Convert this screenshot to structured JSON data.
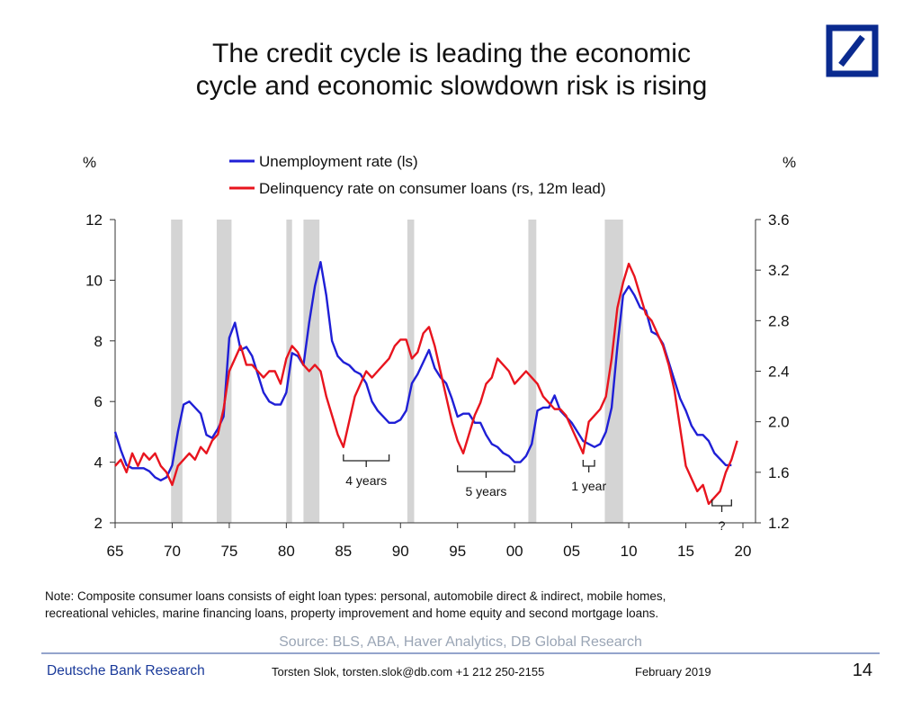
{
  "slide": {
    "source": "Source: BLS, ABA, Haver Analytics, DB Global Research",
    "note": [
      "Note: Composite consumer loans consists of eight loan types: personal, automobile direct & indirect, mobile homes,",
      "recreational vehicles, marine financing loans, property improvement and home equity and second mortgage loans."
    ],
    "brand": "Deutsche Bank Research",
    "author": "Torsten Slok, torsten.slok@db.com  +1 212 250-2155",
    "date": "February 2019",
    "page": "14"
  },
  "chart_data": {
    "type": "line",
    "title": [
      "The credit cycle is leading the economic",
      "cycle and economic slowdown risk is rising"
    ],
    "y_label": "%",
    "y2_label": "%",
    "xlim": [
      1965,
      2020
    ],
    "xticks": [
      {
        "value": 1965,
        "label": "65"
      },
      {
        "value": 1970,
        "label": "70"
      },
      {
        "value": 1975,
        "label": "75"
      },
      {
        "value": 1980,
        "label": "80"
      },
      {
        "value": 1985,
        "label": "85"
      },
      {
        "value": 1990,
        "label": "90"
      },
      {
        "value": 1995,
        "label": "95"
      },
      {
        "value": 2000,
        "label": "00"
      },
      {
        "value": 2005,
        "label": "05"
      },
      {
        "value": 2010,
        "label": "10"
      },
      {
        "value": 2015,
        "label": "15"
      },
      {
        "value": 2020,
        "label": "20"
      }
    ],
    "ylim": [
      2,
      12
    ],
    "yticks": [
      2,
      4,
      6,
      8,
      10,
      12
    ],
    "y2lim": [
      1.2,
      3.6
    ],
    "y2ticks": [
      1.2,
      1.6,
      {
        "value": 2,
        "label": "2.0"
      },
      2.4,
      2.8,
      3.2,
      3.6
    ],
    "recessions": [
      [
        1969.9,
        1970.9
      ],
      [
        1973.9,
        1975.2
      ],
      [
        1980,
        1980.5
      ],
      [
        1981.5,
        1982.9
      ],
      [
        1990.6,
        1991.2
      ],
      [
        2001.2,
        2001.9
      ],
      [
        2007.9,
        2009.5
      ]
    ],
    "annotations": [
      {
        "text": "4 years",
        "x": [
          1985,
          1989
        ]
      },
      {
        "text": "5 years",
        "x": [
          1995,
          2000
        ]
      },
      {
        "text": "1 year",
        "x": [
          2006,
          2007
        ]
      },
      {
        "text": "?",
        "x": [
          2017.3,
          2019
        ]
      }
    ],
    "x": [
      1965,
      1965.5,
      1966,
      1966.5,
      1967,
      1967.5,
      1968,
      1968.5,
      1969,
      1969.5,
      1970,
      1970.5,
      1971,
      1971.5,
      1972,
      1972.5,
      1973,
      1973.5,
      1974,
      1974.5,
      1975,
      1975.5,
      1976,
      1976.5,
      1977,
      1977.5,
      1978,
      1978.5,
      1979,
      1979.5,
      1980,
      1980.5,
      1981,
      1981.5,
      1982,
      1982.5,
      1983,
      1983.5,
      1984,
      1984.5,
      1985,
      1985.5,
      1986,
      1986.5,
      1987,
      1987.5,
      1988,
      1988.5,
      1989,
      1989.5,
      1990,
      1990.5,
      1991,
      1991.5,
      1992,
      1992.5,
      1993,
      1993.5,
      1994,
      1994.5,
      1995,
      1995.5,
      1996,
      1996.5,
      1997,
      1997.5,
      1998,
      1998.5,
      1999,
      1999.5,
      2000,
      2000.5,
      2001,
      2001.5,
      2002,
      2002.5,
      2003,
      2003.5,
      2004,
      2004.5,
      2005,
      2005.5,
      2006,
      2006.5,
      2007,
      2007.5,
      2008,
      2008.5,
      2009,
      2009.5,
      2010,
      2010.5,
      2011,
      2011.5,
      2012,
      2012.5,
      2013,
      2013.5,
      2014,
      2014.5,
      2015,
      2015.5,
      2016,
      2016.5,
      2017,
      2017.5,
      2018,
      2018.5,
      2019,
      2019.5
    ],
    "series": [
      {
        "name": "Unemployment rate (ls)",
        "color": "#1f1fd6",
        "axis": "y",
        "values": [
          5.0,
          4.4,
          3.9,
          3.8,
          3.8,
          3.8,
          3.7,
          3.5,
          3.4,
          3.5,
          3.9,
          5.0,
          5.9,
          6.0,
          5.8,
          5.6,
          4.9,
          4.8,
          5.1,
          5.5,
          8.1,
          8.6,
          7.7,
          7.8,
          7.5,
          6.9,
          6.3,
          6.0,
          5.9,
          5.9,
          6.3,
          7.6,
          7.5,
          7.2,
          8.6,
          9.8,
          10.6,
          9.5,
          8.0,
          7.5,
          7.3,
          7.2,
          7.0,
          6.9,
          6.6,
          6.0,
          5.7,
          5.5,
          5.3,
          5.3,
          5.4,
          5.7,
          6.6,
          6.9,
          7.3,
          7.7,
          7.1,
          6.8,
          6.6,
          6.1,
          5.5,
          5.6,
          5.6,
          5.3,
          5.3,
          4.9,
          4.6,
          4.5,
          4.3,
          4.2,
          4.0,
          4.0,
          4.2,
          4.6,
          5.7,
          5.8,
          5.8,
          6.2,
          5.7,
          5.5,
          5.3,
          5.0,
          4.7,
          4.6,
          4.5,
          4.6,
          5.0,
          5.8,
          7.8,
          9.5,
          9.8,
          9.5,
          9.1,
          9.0,
          8.3,
          8.2,
          7.9,
          7.3,
          6.7,
          6.1,
          5.7,
          5.2,
          4.9,
          4.9,
          4.7,
          4.3,
          4.1,
          3.9,
          3.9,
          null
        ]
      },
      {
        "name": "Delinquency rate on consumer loans (rs, 12m lead)",
        "color": "#e8141e",
        "axis": "y2",
        "values": [
          1.65,
          1.7,
          1.6,
          1.75,
          1.65,
          1.75,
          1.7,
          1.75,
          1.65,
          1.6,
          1.5,
          1.65,
          1.7,
          1.75,
          1.7,
          1.8,
          1.75,
          1.85,
          1.9,
          2.1,
          2.4,
          2.5,
          2.6,
          2.45,
          2.45,
          2.4,
          2.35,
          2.4,
          2.4,
          2.3,
          2.5,
          2.6,
          2.55,
          2.45,
          2.4,
          2.45,
          2.4,
          2.2,
          2.05,
          1.9,
          1.8,
          2.0,
          2.2,
          2.3,
          2.4,
          2.35,
          2.4,
          2.45,
          2.5,
          2.6,
          2.65,
          2.65,
          2.5,
          2.55,
          2.7,
          2.75,
          2.6,
          2.4,
          2.2,
          2.0,
          1.85,
          1.75,
          1.9,
          2.05,
          2.15,
          2.3,
          2.35,
          2.5,
          2.45,
          2.4,
          2.3,
          2.35,
          2.4,
          2.35,
          2.3,
          2.2,
          2.15,
          2.1,
          2.1,
          2.05,
          1.95,
          1.85,
          1.75,
          2.0,
          2.05,
          2.1,
          2.2,
          2.5,
          2.9,
          3.1,
          3.25,
          3.15,
          3.0,
          2.85,
          2.8,
          2.7,
          2.6,
          2.45,
          2.25,
          1.95,
          1.65,
          1.55,
          1.45,
          1.5,
          1.35,
          1.4,
          1.45,
          1.6,
          1.7,
          1.85
        ]
      }
    ]
  }
}
